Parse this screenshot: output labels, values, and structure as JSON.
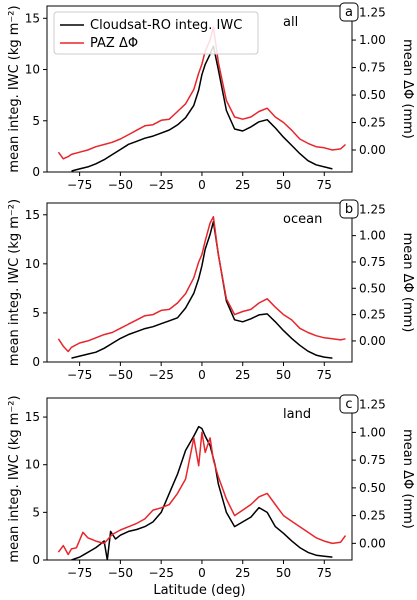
{
  "chart_data": [
    {
      "type": "line",
      "panel_tag": "a",
      "annotation": "all",
      "xlabel": "",
      "ylabel": "mean integ. IWC (kg m⁻²)",
      "ylabel_right": "mean ΔΦ (mm)",
      "xlim": [
        -95,
        92
      ],
      "ylim": [
        0,
        16.2
      ],
      "ylim_right": [
        -0.2,
        1.31
      ],
      "x_ticks": [
        -75,
        -50,
        -25,
        0,
        25,
        50,
        75
      ],
      "x_tick_labels": [
        "−75",
        "−50",
        "−25",
        "0",
        "25",
        "50",
        "75"
      ],
      "y_ticks": [
        0,
        5,
        10,
        15
      ],
      "y_ticks_right": [
        0.0,
        0.25,
        0.5,
        0.75,
        1.0,
        1.25
      ],
      "y_tick_labels_right": [
        "0.00",
        "0.25",
        "0.50",
        "0.75",
        "1.00",
        "1.25"
      ],
      "legend": {
        "position": "top-left",
        "entries": [
          "Cloudsat-RO integ. IWC",
          "PAZ ΔΦ"
        ]
      },
      "series": [
        {
          "name": "Cloudsat-RO integ. IWC",
          "axis": "left",
          "color": "#000000",
          "x": [
            -80,
            -75,
            -70,
            -65,
            -60,
            -55,
            -50,
            -45,
            -40,
            -35,
            -30,
            -25,
            -20,
            -15,
            -10,
            -5,
            -2,
            0,
            2,
            5,
            7,
            10,
            15,
            20,
            25,
            30,
            35,
            40,
            45,
            50,
            55,
            60,
            65,
            70,
            75,
            80
          ],
          "y": [
            0.1,
            0.3,
            0.5,
            0.8,
            1.2,
            1.7,
            2.2,
            2.7,
            3.0,
            3.3,
            3.5,
            3.8,
            4.1,
            4.6,
            5.3,
            6.5,
            8.0,
            9.5,
            10.5,
            11.5,
            12.3,
            10.0,
            6.0,
            4.2,
            4.0,
            4.4,
            4.9,
            5.1,
            4.3,
            3.4,
            2.6,
            1.8,
            1.1,
            0.7,
            0.5,
            0.3
          ]
        },
        {
          "name": "PAZ ΔΦ",
          "axis": "right",
          "color": "#e8262c",
          "x": [
            -88,
            -85,
            -82,
            -80,
            -75,
            -70,
            -65,
            -60,
            -55,
            -50,
            -45,
            -40,
            -35,
            -30,
            -25,
            -20,
            -15,
            -10,
            -5,
            -2,
            0,
            2,
            5,
            7,
            10,
            15,
            20,
            25,
            30,
            35,
            40,
            45,
            50,
            55,
            60,
            65,
            70,
            75,
            80,
            85,
            88
          ],
          "y": [
            -0.02,
            -0.08,
            -0.06,
            -0.04,
            -0.02,
            0.0,
            0.03,
            0.05,
            0.07,
            0.1,
            0.14,
            0.18,
            0.22,
            0.23,
            0.27,
            0.28,
            0.35,
            0.42,
            0.55,
            0.7,
            0.78,
            0.9,
            1.0,
            1.12,
            0.8,
            0.45,
            0.3,
            0.28,
            0.3,
            0.35,
            0.38,
            0.3,
            0.25,
            0.18,
            0.1,
            0.06,
            0.03,
            0.02,
            0.0,
            0.01,
            0.05
          ]
        }
      ]
    },
    {
      "type": "line",
      "panel_tag": "b",
      "annotation": "ocean",
      "xlabel": "",
      "ylabel": "mean integ. IWC (kg m⁻²)",
      "ylabel_right": "mean ΔΦ (mm)",
      "xlim": [
        -95,
        92
      ],
      "ylim": [
        0,
        16.2
      ],
      "ylim_right": [
        -0.2,
        1.31
      ],
      "x_ticks": [
        -75,
        -50,
        -25,
        0,
        25,
        50,
        75
      ],
      "x_tick_labels": [
        "−75",
        "−50",
        "−25",
        "0",
        "25",
        "50",
        "75"
      ],
      "y_ticks": [
        0,
        5,
        10,
        15
      ],
      "y_ticks_right": [
        0.0,
        0.25,
        0.5,
        0.75,
        1.0,
        1.25
      ],
      "y_tick_labels_right": [
        "0.00",
        "0.25",
        "0.50",
        "0.75",
        "1.00",
        "1.25"
      ],
      "series": [
        {
          "name": "Cloudsat-RO integ. IWC",
          "axis": "left",
          "color": "#000000",
          "x": [
            -80,
            -75,
            -70,
            -65,
            -60,
            -55,
            -50,
            -45,
            -40,
            -35,
            -30,
            -25,
            -20,
            -15,
            -10,
            -5,
            -2,
            0,
            2,
            5,
            7,
            10,
            15,
            20,
            25,
            30,
            35,
            40,
            45,
            50,
            55,
            60,
            65,
            70,
            75,
            80
          ],
          "y": [
            0.4,
            0.6,
            0.8,
            1.0,
            1.4,
            1.9,
            2.4,
            2.8,
            3.1,
            3.4,
            3.6,
            3.9,
            4.2,
            4.5,
            5.5,
            7.0,
            8.5,
            9.8,
            11.5,
            13.0,
            14.3,
            11.0,
            6.2,
            4.3,
            4.1,
            4.4,
            4.8,
            4.9,
            4.1,
            3.2,
            2.4,
            1.7,
            1.1,
            0.7,
            0.5,
            0.4
          ]
        },
        {
          "name": "PAZ ΔΦ",
          "axis": "right",
          "color": "#e8262c",
          "x": [
            -88,
            -85,
            -82,
            -80,
            -75,
            -70,
            -65,
            -60,
            -55,
            -50,
            -45,
            -40,
            -35,
            -30,
            -25,
            -20,
            -15,
            -10,
            -5,
            -2,
            0,
            2,
            5,
            7,
            10,
            15,
            20,
            25,
            30,
            35,
            40,
            45,
            50,
            55,
            60,
            65,
            70,
            75,
            80,
            85,
            88
          ],
          "y": [
            0.02,
            -0.05,
            -0.1,
            -0.06,
            -0.02,
            0.0,
            0.03,
            0.06,
            0.08,
            0.12,
            0.16,
            0.2,
            0.24,
            0.25,
            0.29,
            0.3,
            0.36,
            0.45,
            0.6,
            0.75,
            0.82,
            0.95,
            1.12,
            1.18,
            0.82,
            0.4,
            0.25,
            0.28,
            0.3,
            0.36,
            0.4,
            0.32,
            0.25,
            0.2,
            0.12,
            0.08,
            0.05,
            0.03,
            0.02,
            0.01,
            0.02
          ]
        }
      ]
    },
    {
      "type": "line",
      "panel_tag": "c",
      "annotation": "land",
      "xlabel": "Latitude (deg)",
      "ylabel": "mean integ. IWC (kg m⁻²)",
      "ylabel_right": "mean ΔΦ (mm)",
      "xlim": [
        -95,
        92
      ],
      "ylim": [
        0,
        17.0
      ],
      "ylim_right": [
        -0.15,
        1.31
      ],
      "x_ticks": [
        -75,
        -50,
        -25,
        0,
        25,
        50,
        75
      ],
      "x_tick_labels": [
        "−75",
        "−50",
        "−25",
        "0",
        "25",
        "50",
        "75"
      ],
      "y_ticks": [
        0,
        5,
        10,
        15
      ],
      "y_ticks_right": [
        0.0,
        0.25,
        0.5,
        0.75,
        1.0,
        1.25
      ],
      "y_tick_labels_right": [
        "0.00",
        "0.25",
        "0.50",
        "0.75",
        "1.00",
        "1.25"
      ],
      "series": [
        {
          "name": "Cloudsat-RO integ. IWC",
          "axis": "left",
          "color": "#000000",
          "x": [
            -80,
            -75,
            -72,
            -68,
            -65,
            -62,
            -60,
            -58,
            -56,
            -53,
            -50,
            -45,
            -40,
            -35,
            -30,
            -25,
            -20,
            -15,
            -10,
            -5,
            -2,
            0,
            2,
            5,
            8,
            10,
            15,
            20,
            25,
            30,
            35,
            40,
            45,
            50,
            55,
            60,
            65,
            70,
            75,
            80
          ],
          "y": [
            0.0,
            0.3,
            0.6,
            1.0,
            1.3,
            1.7,
            2.0,
            0.0,
            3.0,
            2.2,
            2.6,
            3.0,
            3.2,
            3.5,
            4.0,
            5.0,
            7.0,
            9.0,
            11.5,
            13.0,
            14.0,
            13.8,
            13.0,
            12.0,
            10.0,
            8.0,
            5.0,
            3.5,
            4.0,
            4.5,
            5.5,
            5.0,
            3.5,
            2.8,
            2.0,
            1.3,
            0.8,
            0.5,
            0.4,
            0.3
          ]
        },
        {
          "name": "PAZ ΔΦ",
          "axis": "right",
          "color": "#e8262c",
          "x": [
            -88,
            -85,
            -82,
            -80,
            -77,
            -73,
            -70,
            -65,
            -60,
            -55,
            -50,
            -45,
            -40,
            -35,
            -30,
            -25,
            -20,
            -15,
            -10,
            -7,
            -5,
            -2,
            0,
            2,
            5,
            7,
            10,
            15,
            20,
            25,
            30,
            35,
            40,
            45,
            50,
            55,
            60,
            65,
            70,
            75,
            80,
            85,
            88
          ],
          "y": [
            -0.08,
            -0.02,
            -0.1,
            -0.05,
            -0.04,
            0.1,
            0.05,
            0.02,
            0.0,
            0.08,
            0.12,
            0.15,
            0.18,
            0.22,
            0.3,
            0.32,
            0.35,
            0.45,
            0.58,
            0.8,
            0.95,
            0.7,
            1.0,
            0.82,
            0.95,
            0.75,
            0.6,
            0.4,
            0.25,
            0.3,
            0.35,
            0.42,
            0.45,
            0.35,
            0.25,
            0.2,
            0.15,
            0.1,
            0.05,
            0.02,
            0.0,
            0.01,
            0.07
          ]
        }
      ]
    }
  ]
}
